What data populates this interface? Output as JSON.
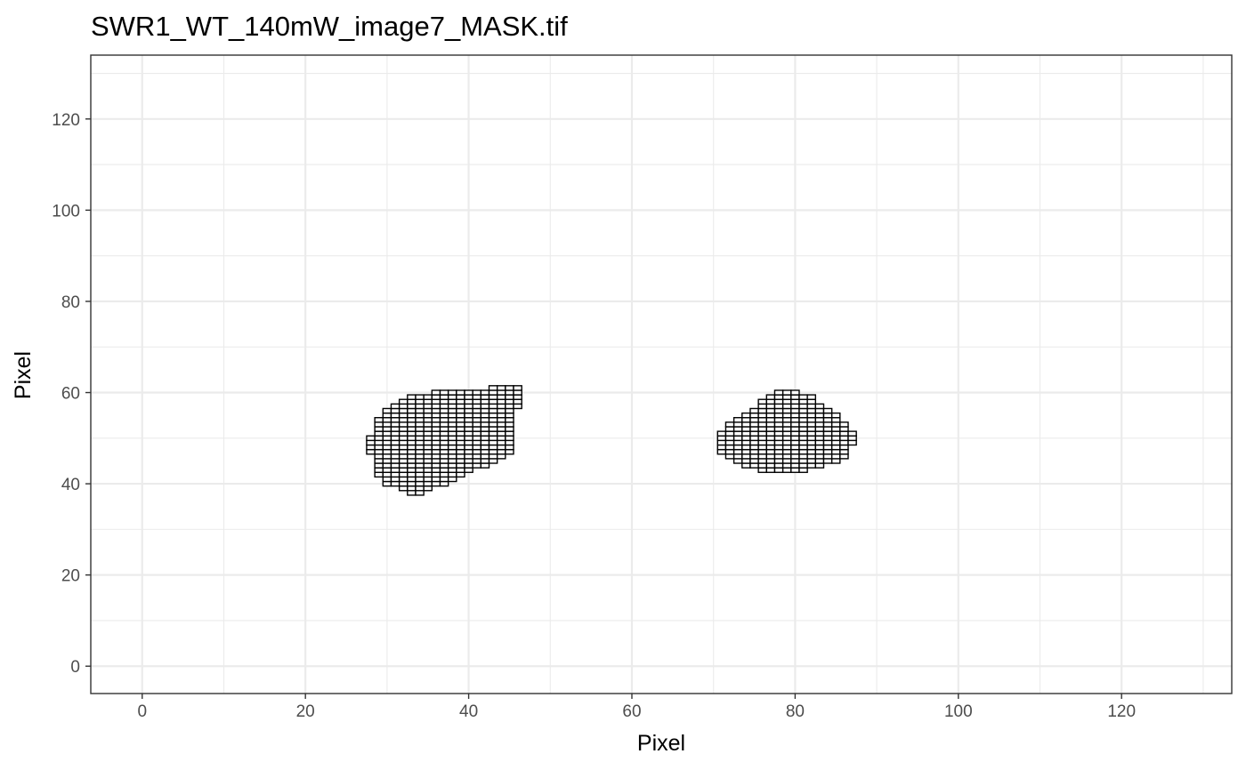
{
  "chart_data": {
    "type": "heatmap",
    "title": "SWR1_WT_140mW_image7_MASK.tif",
    "xlabel": "Pixel",
    "ylabel": "Pixel",
    "xlim": [
      -6.3,
      133.5
    ],
    "ylim": [
      -6,
      134
    ],
    "x_ticks": [
      0,
      20,
      40,
      60,
      80,
      100,
      120
    ],
    "y_ticks": [
      0,
      20,
      40,
      60,
      80,
      100,
      120
    ],
    "x_tick_labels": [
      "0",
      "20",
      "40",
      "60",
      "80",
      "100",
      "120"
    ],
    "y_tick_labels": [
      "0",
      "20",
      "40",
      "60",
      "80",
      "100",
      "120"
    ],
    "grid": true,
    "legend": false,
    "cell_size": 1,
    "regions": [
      {
        "rows": [
          [
            38,
            33,
            34
          ],
          [
            39,
            32,
            35
          ],
          [
            40,
            30,
            37
          ],
          [
            41,
            30,
            38
          ],
          [
            42,
            29,
            39
          ],
          [
            43,
            29,
            40
          ],
          [
            44,
            29,
            42
          ],
          [
            45,
            29,
            43
          ],
          [
            46,
            29,
            44
          ],
          [
            47,
            28,
            45
          ],
          [
            48,
            28,
            45
          ],
          [
            49,
            28,
            45
          ],
          [
            50,
            28,
            45
          ],
          [
            51,
            29,
            45
          ],
          [
            52,
            29,
            45
          ],
          [
            53,
            29,
            45
          ],
          [
            54,
            29,
            45
          ],
          [
            55,
            30,
            45
          ],
          [
            56,
            30,
            45
          ],
          [
            57,
            31,
            46
          ],
          [
            58,
            32,
            46
          ],
          [
            59,
            33,
            46
          ],
          [
            60,
            36,
            46
          ],
          [
            61,
            43,
            46
          ]
        ]
      },
      {
        "rows": [
          [
            43,
            76,
            81
          ],
          [
            44,
            74,
            83
          ],
          [
            45,
            73,
            85
          ],
          [
            46,
            72,
            86
          ],
          [
            47,
            71,
            86
          ],
          [
            48,
            71,
            86
          ],
          [
            49,
            71,
            87
          ],
          [
            50,
            71,
            87
          ],
          [
            51,
            71,
            87
          ],
          [
            52,
            72,
            86
          ],
          [
            53,
            72,
            86
          ],
          [
            54,
            73,
            85
          ],
          [
            55,
            74,
            85
          ],
          [
            56,
            75,
            84
          ],
          [
            57,
            76,
            83
          ],
          [
            58,
            76,
            82
          ],
          [
            59,
            77,
            82
          ],
          [
            60,
            78,
            80
          ]
        ]
      }
    ]
  }
}
